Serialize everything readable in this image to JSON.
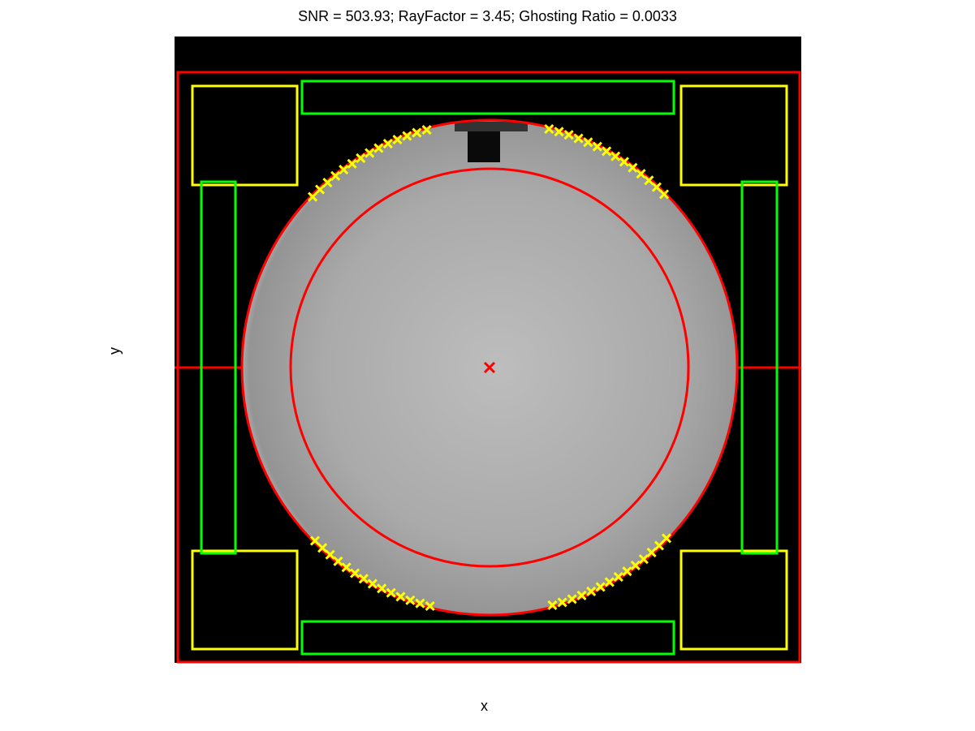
{
  "figure": {
    "title": "SNR = 503.93; RayFactor = 3.45; Ghosting Ratio = 0.0033",
    "xlabel": "x",
    "ylabel": "y"
  },
  "overlays": {
    "outer_frame_color": "#ff0000",
    "circle_color": "#ff0000",
    "signal_roi_color": "#ff0000",
    "noise_roi_color": "#ffff00",
    "ghost_roi_color": "#00ff00",
    "edge_marker_color": "#ffff00",
    "center_marker_color": "#ff0000"
  },
  "image": {
    "background": "#000000",
    "phantom_center_gray": "#bdbdbd",
    "phantom_edge_gray": "#8f8f8f"
  }
}
